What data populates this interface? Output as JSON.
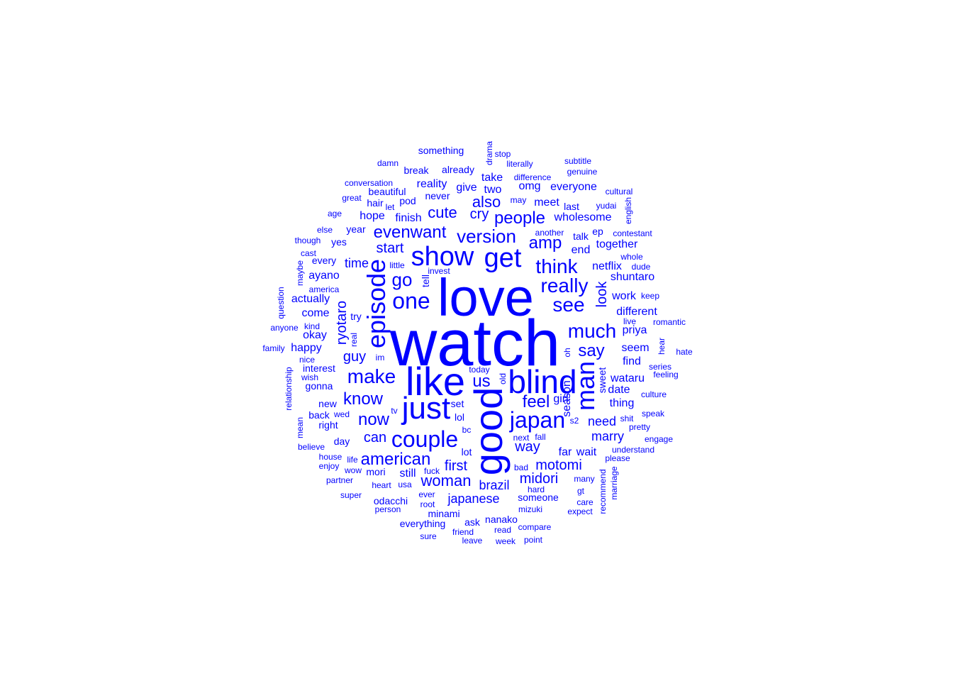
{
  "word_color": "#0000ff",
  "background_color": "#ffffff",
  "words": [
    {
      "text": "watch",
      "rotated": false
    },
    {
      "text": "love",
      "rotated": false
    },
    {
      "text": "like",
      "rotated": false
    },
    {
      "text": "blind",
      "rotated": false
    },
    {
      "text": "just",
      "rotated": false
    },
    {
      "text": "good",
      "rotated": true
    },
    {
      "text": "show",
      "rotated": false
    },
    {
      "text": "get",
      "rotated": false
    },
    {
      "text": "episode",
      "rotated": true
    },
    {
      "text": "couple",
      "rotated": false
    },
    {
      "text": "japan",
      "rotated": false
    },
    {
      "text": "one",
      "rotated": false
    },
    {
      "text": "make",
      "rotated": false
    },
    {
      "text": "man",
      "rotated": true
    },
    {
      "text": "think",
      "rotated": false
    },
    {
      "text": "really",
      "rotated": false
    },
    {
      "text": "see",
      "rotated": false
    },
    {
      "text": "much",
      "rotated": false
    },
    {
      "text": "version",
      "rotated": false
    },
    {
      "text": "american",
      "rotated": false
    },
    {
      "text": "know",
      "rotated": false
    },
    {
      "text": "say",
      "rotated": false
    },
    {
      "text": "people",
      "rotated": false
    },
    {
      "text": "go",
      "rotated": false
    },
    {
      "text": "amp",
      "rotated": false
    },
    {
      "text": "now",
      "rotated": false
    },
    {
      "text": "us",
      "rotated": false
    },
    {
      "text": "feel",
      "rotated": false
    },
    {
      "text": "woman",
      "rotated": false
    },
    {
      "text": "evenwant",
      "rotated": false
    },
    {
      "text": "also",
      "rotated": false
    },
    {
      "text": "cute",
      "rotated": false
    },
    {
      "text": "cry",
      "rotated": false
    },
    {
      "text": "midori",
      "rotated": false
    },
    {
      "text": "motomi",
      "rotated": false
    },
    {
      "text": "way",
      "rotated": false
    },
    {
      "text": "start",
      "rotated": false
    },
    {
      "text": "first",
      "rotated": false
    },
    {
      "text": "japanese",
      "rotated": false
    },
    {
      "text": "brazil",
      "rotated": false
    },
    {
      "text": "look",
      "rotated": true
    },
    {
      "text": "guy",
      "rotated": false
    },
    {
      "text": "ryotaro",
      "rotated": true
    },
    {
      "text": "time",
      "rotated": false
    },
    {
      "text": "can",
      "rotated": false
    },
    {
      "text": "marry",
      "rotated": false
    },
    {
      "text": "need",
      "rotated": false
    },
    {
      "text": "season",
      "rotated": true
    },
    {
      "text": "girl",
      "rotated": false
    },
    {
      "text": "wataru",
      "rotated": false
    },
    {
      "text": "thing",
      "rotated": false
    },
    {
      "text": "date",
      "rotated": false
    },
    {
      "text": "wholesome",
      "rotated": false
    },
    {
      "text": "netflix",
      "rotated": false
    },
    {
      "text": "together",
      "rotated": false
    },
    {
      "text": "different",
      "rotated": false
    },
    {
      "text": "shuntaro",
      "rotated": false
    },
    {
      "text": "end",
      "rotated": false
    },
    {
      "text": "seem",
      "rotated": false
    },
    {
      "text": "work",
      "rotated": false
    },
    {
      "text": "priya",
      "rotated": false
    },
    {
      "text": "find",
      "rotated": false
    },
    {
      "text": "hope",
      "rotated": false
    },
    {
      "text": "finish",
      "rotated": false
    },
    {
      "text": "give",
      "rotated": false
    },
    {
      "text": "two",
      "rotated": false
    },
    {
      "text": "take",
      "rotated": false
    },
    {
      "text": "reality",
      "rotated": false
    },
    {
      "text": "omg",
      "rotated": false
    },
    {
      "text": "everyone",
      "rotated": false
    },
    {
      "text": "meet",
      "rotated": false
    },
    {
      "text": "talk",
      "rotated": false
    },
    {
      "text": "ayano",
      "rotated": false
    },
    {
      "text": "actually",
      "rotated": false
    },
    {
      "text": "come",
      "rotated": false
    },
    {
      "text": "okay",
      "rotated": false
    },
    {
      "text": "happy",
      "rotated": false
    },
    {
      "text": "interest",
      "rotated": false
    },
    {
      "text": "pod",
      "rotated": false
    },
    {
      "text": "someone",
      "rotated": false
    },
    {
      "text": "still",
      "rotated": false
    },
    {
      "text": "far",
      "rotated": false
    },
    {
      "text": "wait",
      "rotated": false
    },
    {
      "text": "sweet",
      "rotated": true
    },
    {
      "text": "already",
      "rotated": false
    },
    {
      "text": "break",
      "rotated": false
    },
    {
      "text": "beautiful",
      "rotated": false
    },
    {
      "text": "year",
      "rotated": false
    },
    {
      "text": "yes",
      "rotated": false
    },
    {
      "text": "every",
      "rotated": false
    },
    {
      "text": "gonna",
      "rotated": false
    },
    {
      "text": "try",
      "rotated": false
    },
    {
      "text": "tell",
      "rotated": true
    },
    {
      "text": "lol",
      "rotated": false
    },
    {
      "text": "set",
      "rotated": false
    },
    {
      "text": "lot",
      "rotated": false
    },
    {
      "text": "mori",
      "rotated": false
    },
    {
      "text": "odacchi",
      "rotated": false
    },
    {
      "text": "minami",
      "rotated": false
    },
    {
      "text": "ask",
      "rotated": false
    },
    {
      "text": "nanako",
      "rotated": false
    },
    {
      "text": "everything",
      "rotated": false
    },
    {
      "text": "never",
      "rotated": false
    },
    {
      "text": "hair",
      "rotated": false
    },
    {
      "text": "back",
      "rotated": false
    },
    {
      "text": "right",
      "rotated": false
    },
    {
      "text": "new",
      "rotated": false
    },
    {
      "text": "day",
      "rotated": false
    },
    {
      "text": "last",
      "rotated": false
    },
    {
      "text": "ep",
      "rotated": false
    },
    {
      "text": "something",
      "rotated": false
    },
    {
      "text": "drama",
      "rotated": true
    },
    {
      "text": "stop",
      "rotated": false
    },
    {
      "text": "literally",
      "rotated": false
    },
    {
      "text": "subtitle",
      "rotated": false
    },
    {
      "text": "genuine",
      "rotated": false
    },
    {
      "text": "damn",
      "rotated": false
    },
    {
      "text": "difference",
      "rotated": false
    },
    {
      "text": "conversation",
      "rotated": false
    },
    {
      "text": "cultural",
      "rotated": false
    },
    {
      "text": "english",
      "rotated": true
    },
    {
      "text": "great",
      "rotated": false
    },
    {
      "text": "let",
      "rotated": false
    },
    {
      "text": "may",
      "rotated": false
    },
    {
      "text": "yudai",
      "rotated": false
    },
    {
      "text": "age",
      "rotated": false
    },
    {
      "text": "else",
      "rotated": false
    },
    {
      "text": "another",
      "rotated": false
    },
    {
      "text": "contestant",
      "rotated": false
    },
    {
      "text": "though",
      "rotated": false
    },
    {
      "text": "cast",
      "rotated": false
    },
    {
      "text": "whole",
      "rotated": false
    },
    {
      "text": "maybe",
      "rotated": true
    },
    {
      "text": "little",
      "rotated": false
    },
    {
      "text": "invest",
      "rotated": false
    },
    {
      "text": "dude",
      "rotated": false
    },
    {
      "text": "america",
      "rotated": false
    },
    {
      "text": "keep",
      "rotated": false
    },
    {
      "text": "question",
      "rotated": true
    },
    {
      "text": "kind",
      "rotated": false
    },
    {
      "text": "live",
      "rotated": false
    },
    {
      "text": "romantic",
      "rotated": false
    },
    {
      "text": "anyone",
      "rotated": false
    },
    {
      "text": "real",
      "rotated": true
    },
    {
      "text": "family",
      "rotated": false
    },
    {
      "text": "oh",
      "rotated": true
    },
    {
      "text": "hear",
      "rotated": true
    },
    {
      "text": "hate",
      "rotated": false
    },
    {
      "text": "im",
      "rotated": false
    },
    {
      "text": "nice",
      "rotated": false
    },
    {
      "text": "relationship",
      "rotated": true
    },
    {
      "text": "today",
      "rotated": false
    },
    {
      "text": "old",
      "rotated": true
    },
    {
      "text": "series",
      "rotated": false
    },
    {
      "text": "wish",
      "rotated": false
    },
    {
      "text": "feeling",
      "rotated": false
    },
    {
      "text": "culture",
      "rotated": false
    },
    {
      "text": "tv",
      "rotated": false
    },
    {
      "text": "wed",
      "rotated": false
    },
    {
      "text": "speak",
      "rotated": false
    },
    {
      "text": "mean",
      "rotated": true
    },
    {
      "text": "s2",
      "rotated": false
    },
    {
      "text": "shit",
      "rotated": false
    },
    {
      "text": "pretty",
      "rotated": false
    },
    {
      "text": "bc",
      "rotated": false
    },
    {
      "text": "next",
      "rotated": false
    },
    {
      "text": "fall",
      "rotated": false
    },
    {
      "text": "engage",
      "rotated": false
    },
    {
      "text": "believe",
      "rotated": false
    },
    {
      "text": "understand",
      "rotated": false
    },
    {
      "text": "house",
      "rotated": false
    },
    {
      "text": "life",
      "rotated": false
    },
    {
      "text": "please",
      "rotated": false
    },
    {
      "text": "enjoy",
      "rotated": false
    },
    {
      "text": "wow",
      "rotated": false
    },
    {
      "text": "fuck",
      "rotated": false
    },
    {
      "text": "bad",
      "rotated": false
    },
    {
      "text": "recommend",
      "rotated": true
    },
    {
      "text": "marriage",
      "rotated": true
    },
    {
      "text": "partner",
      "rotated": false
    },
    {
      "text": "many",
      "rotated": false
    },
    {
      "text": "heart",
      "rotated": false
    },
    {
      "text": "usa",
      "rotated": false
    },
    {
      "text": "hard",
      "rotated": false
    },
    {
      "text": "gt",
      "rotated": false
    },
    {
      "text": "super",
      "rotated": false
    },
    {
      "text": "ever",
      "rotated": false
    },
    {
      "text": "care",
      "rotated": false
    },
    {
      "text": "root",
      "rotated": false
    },
    {
      "text": "person",
      "rotated": false
    },
    {
      "text": "mizuki",
      "rotated": false
    },
    {
      "text": "expect",
      "rotated": false
    },
    {
      "text": "compare",
      "rotated": false
    },
    {
      "text": "friend",
      "rotated": false
    },
    {
      "text": "read",
      "rotated": false
    },
    {
      "text": "sure",
      "rotated": false
    },
    {
      "text": "leave",
      "rotated": false
    },
    {
      "text": "week",
      "rotated": false
    },
    {
      "text": "point",
      "rotated": false
    }
  ]
}
